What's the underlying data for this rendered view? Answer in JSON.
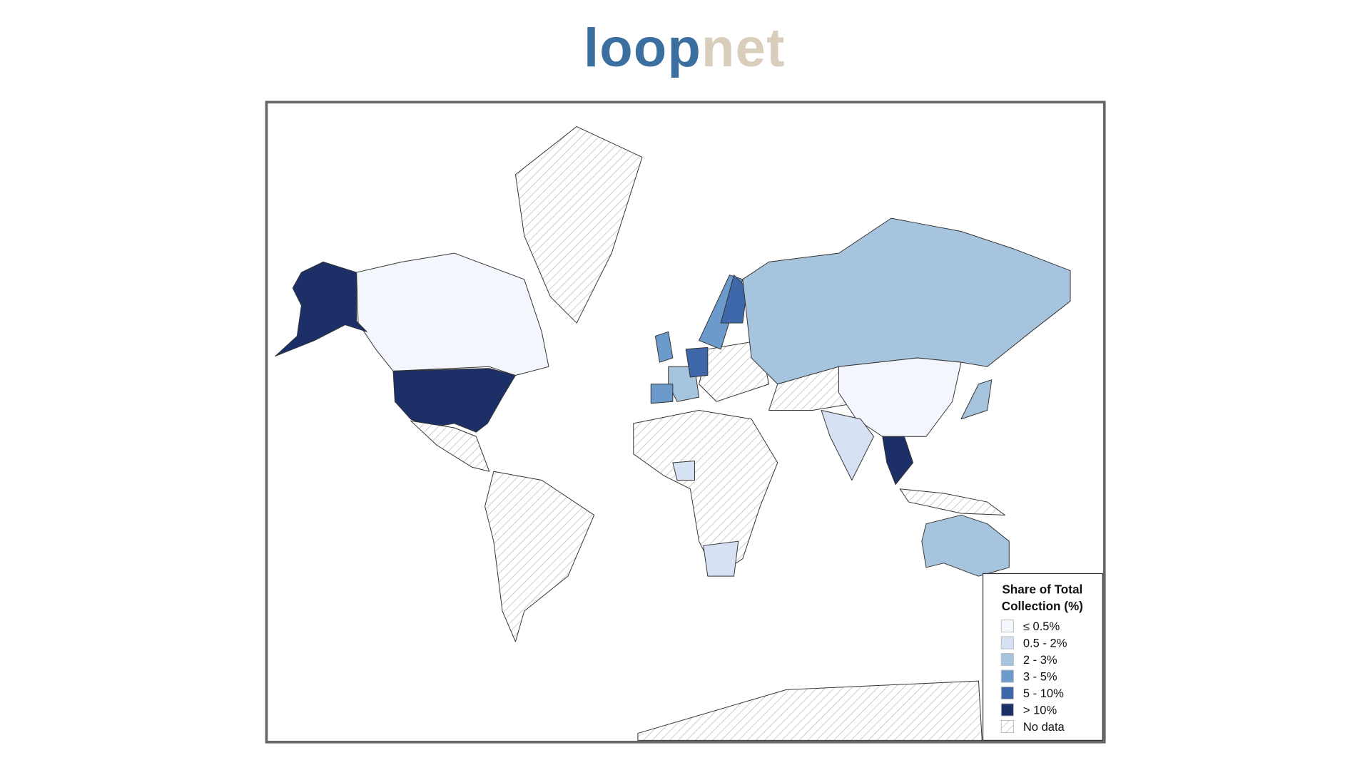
{
  "header": {
    "logo": [
      "loop",
      "net"
    ]
  },
  "map": {
    "legend": {
      "title": [
        "Share of Total",
        "Collection (%)"
      ],
      "items": [
        {
          "label": "≤ 0.5%",
          "color": "#f3f6fd"
        },
        {
          "label": "0.5 - 2%",
          "color": "#d6e2f3"
        },
        {
          "label": "2 - 3%",
          "color": "#a7c4de"
        },
        {
          "label": "3 - 5%",
          "color": "#6b9acb"
        },
        {
          "label": "5 - 10%",
          "color": "#3e68a9"
        },
        {
          "label": "> 10%",
          "color": "#1c2f66"
        },
        {
          "label": "No data"
        }
      ]
    }
  }
}
